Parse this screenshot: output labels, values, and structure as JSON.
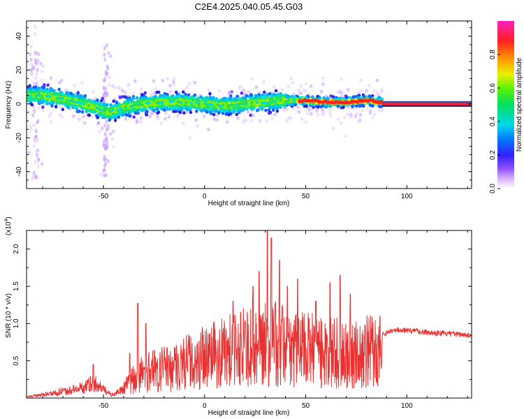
{
  "title": "C2E4.2025.040.05.45.G03",
  "colors": {
    "snr_line": "#e83232",
    "spectral_track": "#ff2020",
    "spectral_zero_line": "#00b400",
    "background": "#ffffff"
  },
  "chart_data": [
    {
      "type": "heatmap",
      "xlabel": "Height of straight line (km)",
      "ylabel": "Frequency (Hz)",
      "xlim": [
        -88,
        132
      ],
      "ylim": [
        -50,
        49
      ],
      "xticks": [
        -50,
        0,
        50,
        100
      ],
      "xtick_labels": [
        "-50",
        "0",
        "50",
        "100"
      ],
      "yticks": [
        -40,
        -20,
        0,
        20,
        40
      ],
      "ytick_labels": [
        "-40",
        "-20",
        "0",
        "20",
        "40"
      ],
      "colorbar": {
        "label": "Normalized spectral amplitude",
        "range": [
          0,
          1
        ],
        "ticks": [
          0.0,
          0.2,
          0.4,
          0.6,
          0.8
        ],
        "tick_labels": [
          "0.0",
          "0.2",
          "0.4",
          "0.6",
          "0.8"
        ],
        "colormap": "rainbow (violet-blue-cyan-green-yellow-red-magenta)"
      },
      "dominant_frequency_track": {
        "x": [
          -88,
          -80,
          -70,
          -60,
          -52,
          -48,
          -44,
          -40,
          -30,
          -20,
          -10,
          0,
          10,
          20,
          30,
          40,
          46,
          50,
          60,
          70,
          80,
          88,
          100,
          110,
          120,
          132
        ],
        "y": [
          5,
          5,
          3,
          0,
          -3,
          -5,
          -4,
          -2,
          0,
          1,
          1,
          0,
          -1,
          0,
          1,
          2,
          2,
          2,
          1,
          1,
          2,
          1,
          0,
          0,
          0,
          0
        ]
      },
      "high_amplitude_track_start_km": 46,
      "grid": false
    },
    {
      "type": "line",
      "xlabel": "Height of straight line (km)",
      "ylabel": "SNR (10 * v/v)",
      "scale_note": "(x10^4)",
      "scale_base": "(x10",
      "scale_exponent": "4",
      "scale_close": ")",
      "xlim": [
        -88,
        132
      ],
      "ylim": [
        0,
        2.25
      ],
      "xticks": [
        -50,
        0,
        50,
        100
      ],
      "xtick_labels": [
        "-50",
        "0",
        "50",
        "100"
      ],
      "yticks": [
        0.5,
        1.0,
        1.5,
        2.0
      ],
      "ytick_labels": [
        "0.5",
        "1.0",
        "1.5",
        "2.0"
      ],
      "series": [
        {
          "envelope_x": [
            -88,
            -80,
            -70,
            -60,
            -55,
            -52,
            -48,
            -45,
            -40,
            -35,
            -30,
            -20,
            -10,
            0,
            10,
            20,
            25,
            30,
            35,
            40,
            50,
            60,
            70,
            75,
            80,
            88,
            95,
            100,
            110,
            120,
            132
          ],
          "envelope_y": [
            0.02,
            0.06,
            0.12,
            0.18,
            0.28,
            0.2,
            0.1,
            0.05,
            0.18,
            0.35,
            0.45,
            0.55,
            0.65,
            0.75,
            0.85,
            0.95,
            1.0,
            1.05,
            1.0,
            0.95,
            0.9,
            0.85,
            0.82,
            0.8,
            0.85,
            0.9,
            0.95,
            0.95,
            0.92,
            0.9,
            0.88
          ],
          "spikes": [
            {
              "x": -55,
              "y": 0.45
            },
            {
              "x": -37,
              "y": 0.6
            },
            {
              "x": -33,
              "y": 1.27
            },
            {
              "x": -29,
              "y": 1.0
            },
            {
              "x": 14,
              "y": 1.3
            },
            {
              "x": 24,
              "y": 1.5
            },
            {
              "x": 27,
              "y": 1.7
            },
            {
              "x": 31,
              "y": 2.25
            },
            {
              "x": 33,
              "y": 2.15
            },
            {
              "x": 37,
              "y": 1.85
            },
            {
              "x": 41,
              "y": 1.5
            },
            {
              "x": 46,
              "y": 1.6
            },
            {
              "x": 55,
              "y": 1.3
            },
            {
              "x": 62,
              "y": 1.55
            },
            {
              "x": 67,
              "y": 1.65
            },
            {
              "x": 72,
              "y": 1.4
            }
          ]
        }
      ],
      "grid": false
    }
  ]
}
